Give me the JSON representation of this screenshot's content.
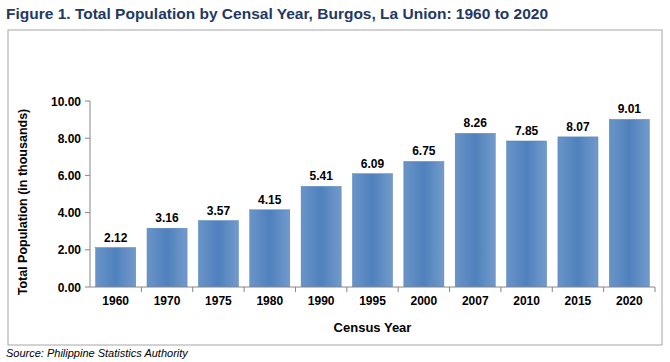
{
  "chart_data": {
    "type": "bar",
    "title": "Figure 1. Total Population by Censal Year, Burgos, La Union: 1960 to 2020",
    "x_label": "Census Year",
    "y_label": "Total Population (in thousands)",
    "source": "Source: Philippine Statistics Authority",
    "categories": [
      "1960",
      "1970",
      "1975",
      "1980",
      "1990",
      "1995",
      "2000",
      "2007",
      "2010",
      "2015",
      "2020"
    ],
    "values": [
      2.12,
      3.16,
      3.57,
      4.15,
      5.41,
      6.09,
      6.75,
      8.26,
      7.85,
      8.07,
      9.01
    ],
    "color": "#4f81bd",
    "ylim": [
      0,
      10
    ],
    "yticks": [
      {
        "value": 0,
        "label": "0.00"
      },
      {
        "value": 2,
        "label": "2.00"
      },
      {
        "value": 4,
        "label": "4.00"
      },
      {
        "value": 6,
        "label": "6.00"
      },
      {
        "value": 8,
        "label": "8.00"
      },
      {
        "value": 10,
        "label": "10.00"
      }
    ],
    "grid": false,
    "data_labels": true
  }
}
